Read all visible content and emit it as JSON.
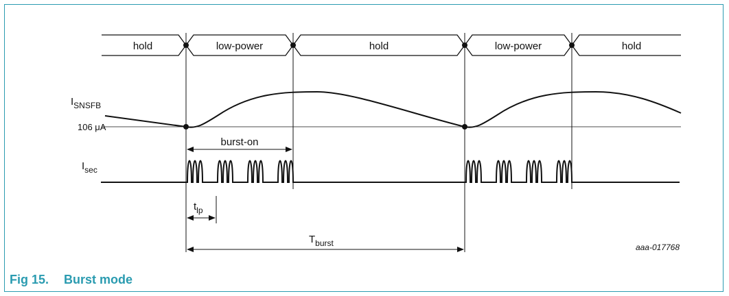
{
  "figure": {
    "number": "Fig 15.",
    "title": "Burst mode",
    "watermark": "aaa-017768"
  },
  "state_bar": {
    "states": [
      "hold",
      "low-power",
      "hold",
      "low-power",
      "hold"
    ]
  },
  "signals": {
    "isnsfb": {
      "main": "I",
      "sub": "SNSFB"
    },
    "reference_label": "106 μA",
    "isec": {
      "main": "I",
      "sub": "sec"
    }
  },
  "annotations": {
    "burst_on": "burst-on",
    "tlp": {
      "main": "t",
      "sub": "lp"
    },
    "tburst": {
      "main": "T",
      "sub": "burst"
    }
  },
  "colors": {
    "accent": "#2a9bb0",
    "line": "#111111"
  }
}
